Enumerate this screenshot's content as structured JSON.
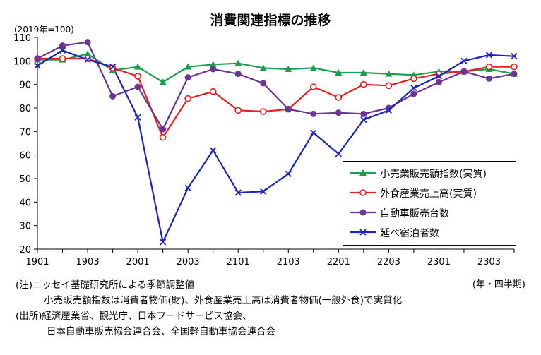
{
  "title": "消費関連指標の推移",
  "unit_label": "(2019年=100)",
  "period_label": "(年・四半期)",
  "notes": [
    "(注)ニッセイ基礎研究所による季節調整値",
    "小売販売額指数は消費者物価(財)、外食産業売上高は消費者物価(一般外食)で実質化",
    "(出所)経済産業省、観光庁、日本フードサービス協会、",
    "日本自動車販売協会連合会、全国軽自動車協会連合会"
  ],
  "chart_data": {
    "type": "line",
    "title": "消費関連指標の推移",
    "ylabel": "(2019年=100)",
    "xlabel": "(年・四半期)",
    "ylim": [
      20,
      110
    ],
    "yticks": [
      20,
      30,
      40,
      50,
      60,
      70,
      80,
      90,
      100,
      110
    ],
    "x": [
      "1901",
      "1902",
      "1903",
      "1904",
      "2001",
      "2002",
      "2003",
      "2004",
      "2101",
      "2102",
      "2103",
      "2104",
      "2201",
      "2202",
      "2203",
      "2204",
      "2301",
      "2302",
      "2303",
      "2304"
    ],
    "xtick_labels": [
      "1901",
      "1903",
      "2001",
      "2003",
      "2101",
      "2103",
      "2201",
      "2203",
      "2301",
      "2303"
    ],
    "grid": false,
    "legend_position": "lower-right",
    "series": [
      {
        "name": "小売業販売額指数(実質)",
        "color": "#1aa04a",
        "marker": "triangle",
        "values": [
          100.5,
          100.5,
          103,
          96,
          97.5,
          91,
          97.5,
          98.5,
          99,
          97,
          96.5,
          97,
          95,
          95,
          94.5,
          94,
          95.5,
          95.5,
          96.5,
          94.5
        ]
      },
      {
        "name": "外食産業売上高(実質)",
        "color": "#e52020",
        "marker": "circle-open",
        "values": [
          101,
          101,
          101,
          97,
          93.5,
          67.5,
          84,
          87,
          79,
          78.5,
          79.5,
          89,
          84.5,
          90,
          89.5,
          92.5,
          94.5,
          95.5,
          97.5,
          97.5
        ]
      },
      {
        "name": "自動車販売台数",
        "color": "#6a3594",
        "marker": "circle",
        "values": [
          101,
          106.5,
          108,
          85,
          89,
          71,
          93,
          96.5,
          94.5,
          90.5,
          79.5,
          77.5,
          78,
          77.5,
          80,
          86,
          91,
          95.5,
          92.5,
          94.5
        ]
      },
      {
        "name": "延べ宿泊者数",
        "color": "#1a26b8",
        "marker": "x",
        "values": [
          98,
          104.5,
          100.5,
          97.5,
          76,
          23,
          46,
          62,
          44,
          44.5,
          52,
          69.5,
          60.5,
          75,
          79,
          88.5,
          93.5,
          100,
          102.5,
          102
        ]
      }
    ]
  }
}
